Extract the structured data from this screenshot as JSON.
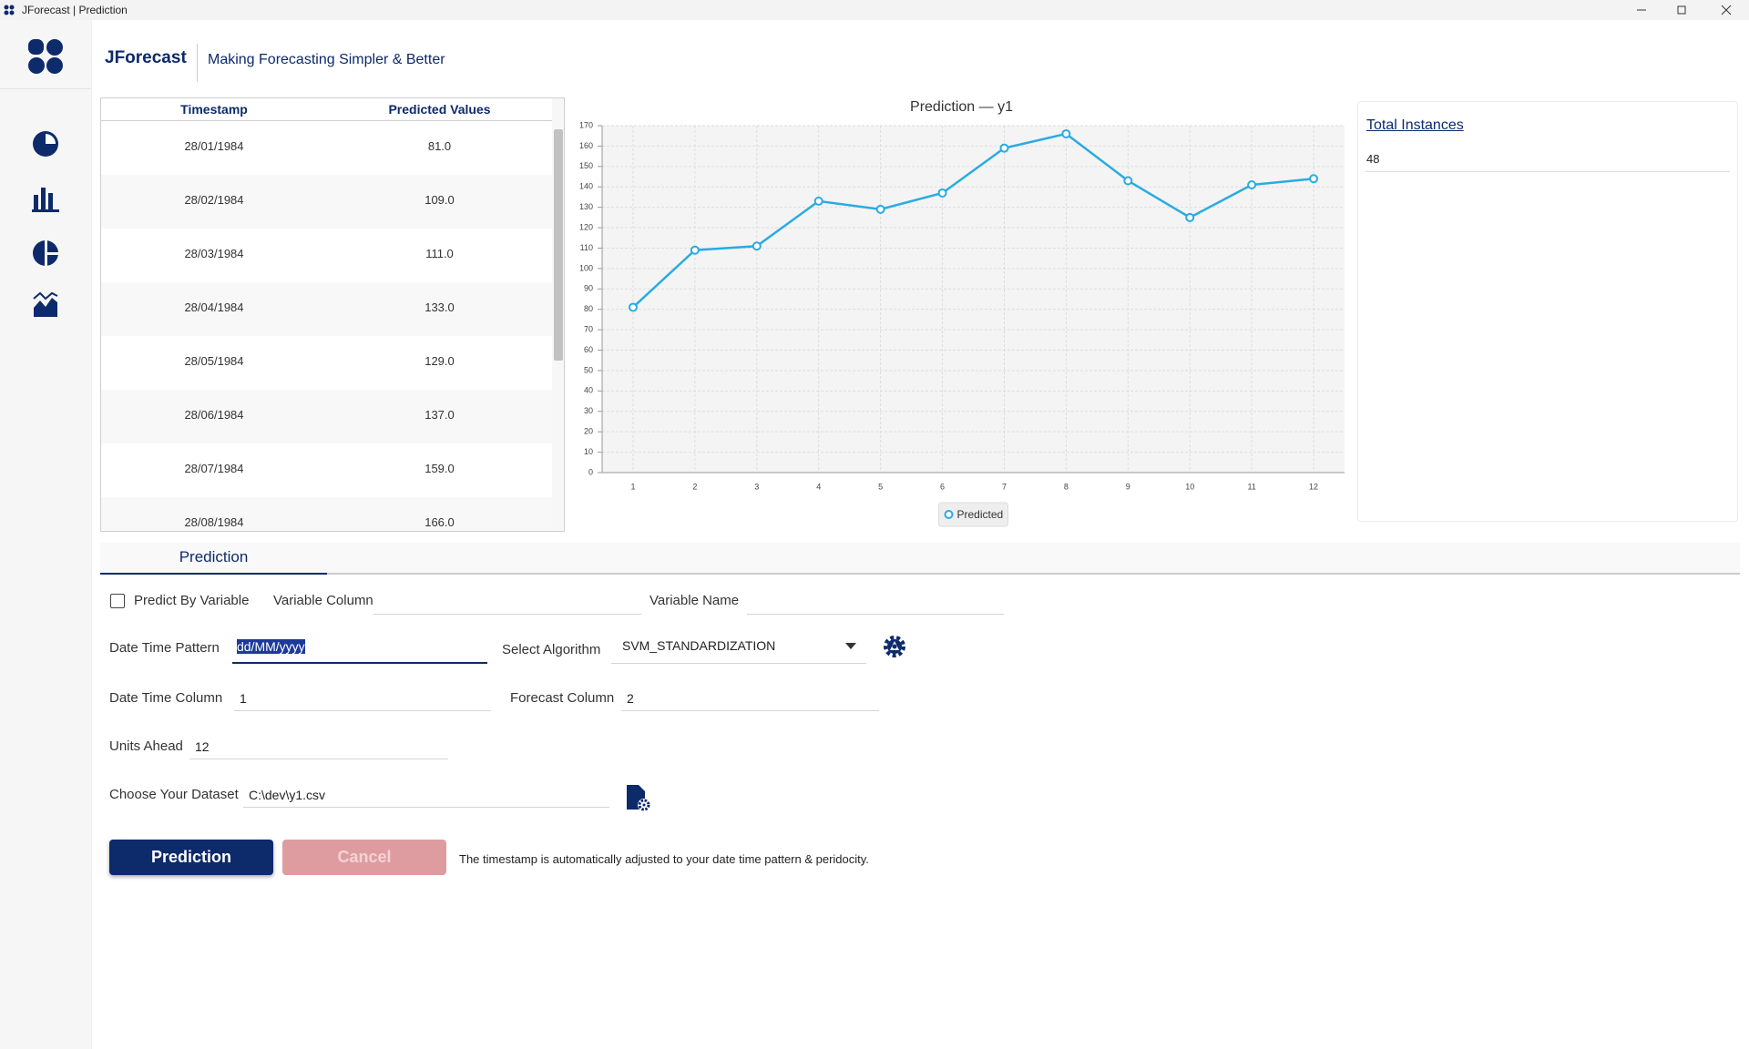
{
  "window": {
    "title": "JForecast | Prediction"
  },
  "header": {
    "app_name": "JForecast",
    "tagline": "Making Forecasting Simpler & Better"
  },
  "table": {
    "columns": [
      "Timestamp",
      "Predicted Values"
    ],
    "rows": [
      [
        "28/01/1984",
        "81.0"
      ],
      [
        "28/02/1984",
        "109.0"
      ],
      [
        "28/03/1984",
        "111.0"
      ],
      [
        "28/04/1984",
        "133.0"
      ],
      [
        "28/05/1984",
        "129.0"
      ],
      [
        "28/06/1984",
        "137.0"
      ],
      [
        "28/07/1984",
        "159.0"
      ],
      [
        "28/08/1984",
        "166.0"
      ]
    ]
  },
  "chart_data": {
    "type": "line",
    "title": "Prediction — y1",
    "categories": [
      "1",
      "2",
      "3",
      "4",
      "5",
      "6",
      "7",
      "8",
      "9",
      "10",
      "11",
      "12"
    ],
    "series": [
      {
        "name": "Predicted",
        "color": "#29abe2",
        "values": [
          81,
          109,
          111,
          133,
          129,
          137,
          159,
          166,
          143,
          125,
          141,
          144
        ]
      }
    ],
    "ylim": [
      0,
      170
    ],
    "yticks": [
      0,
      10,
      20,
      30,
      40,
      50,
      60,
      70,
      80,
      90,
      100,
      110,
      120,
      130,
      140,
      150,
      160,
      170
    ],
    "grid": true,
    "legend": "bottom"
  },
  "stats": {
    "label": "Total Instances",
    "value": "48"
  },
  "tab": {
    "label": "Prediction"
  },
  "form": {
    "predict_by_variable": "Predict By Variable",
    "variable_column": "Variable Column",
    "variable_name": "Variable Name",
    "date_time_pattern": {
      "label": "Date Time Pattern",
      "value": "dd/MM/yyyy"
    },
    "select_algorithm": {
      "label": "Select Algorithm",
      "value": "SVM_STANDARDIZATION"
    },
    "date_time_column": {
      "label": "Date Time Column",
      "value": "1"
    },
    "forecast_column": {
      "label": "Forecast Column",
      "value": "2"
    },
    "units_ahead": {
      "label": "Units Ahead",
      "value": "12"
    },
    "dataset": {
      "label": "Choose Your Dataset",
      "value": "C:\\dev\\y1.csv"
    }
  },
  "buttons": {
    "predict": "Prediction",
    "cancel": "Cancel"
  },
  "note": "The timestamp is automatically adjusted to your date time pattern & peridocity."
}
